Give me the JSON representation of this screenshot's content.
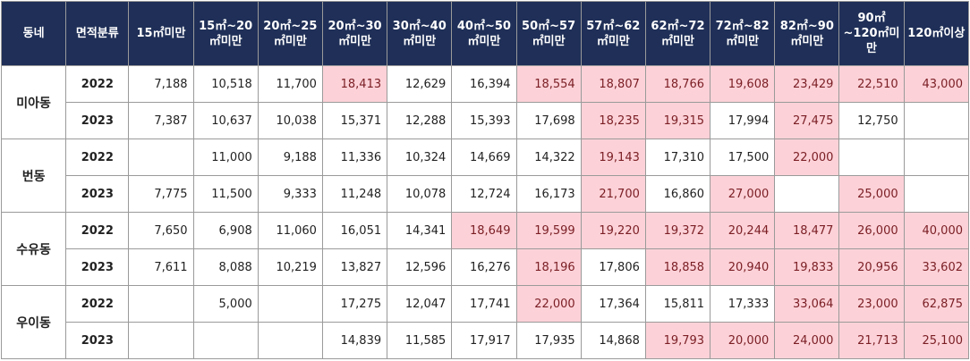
{
  "headers": [
    "동네",
    "면적분류",
    "15㎡미만",
    "15㎡~20㎡미만",
    "20㎡~25㎡미만",
    "20㎡~30㎡미만",
    "30㎡~40㎡미만",
    "40㎡~50㎡미만",
    "50㎡~57㎡미만",
    "57㎡~62㎡미만",
    "62㎡~72㎡미만",
    "72㎡~82㎡미만",
    "82㎡~90㎡미만",
    "90㎡~120㎡미만",
    "120㎡이상"
  ],
  "groups": [
    {
      "dong": "미아동",
      "rows": [
        {
          "year": "2022",
          "values": [
            "7,188",
            "10,518",
            "11,700",
            "18,413",
            "12,629",
            "16,394",
            "18,554",
            "18,807",
            "18,766",
            "19,608",
            "23,429",
            "22,510",
            "43,000"
          ]
        },
        {
          "year": "2023",
          "values": [
            "7,387",
            "10,637",
            "10,038",
            "15,371",
            "12,288",
            "15,393",
            "17,698",
            "18,235",
            "19,315",
            "17,994",
            "27,475",
            "12,750",
            ""
          ]
        }
      ]
    },
    {
      "dong": "번동",
      "rows": [
        {
          "year": "2022",
          "values": [
            "",
            "11,000",
            "9,188",
            "11,336",
            "10,324",
            "14,669",
            "14,322",
            "19,143",
            "17,310",
            "17,500",
            "22,000",
            "",
            ""
          ]
        },
        {
          "year": "2023",
          "values": [
            "7,775",
            "11,500",
            "9,333",
            "11,248",
            "10,078",
            "12,724",
            "16,173",
            "21,700",
            "16,860",
            "27,000",
            "",
            "25,000",
            ""
          ]
        }
      ]
    },
    {
      "dong": "수유동",
      "rows": [
        {
          "year": "2022",
          "values": [
            "7,650",
            "6,908",
            "11,060",
            "16,051",
            "14,341",
            "18,649",
            "19,599",
            "19,220",
            "19,372",
            "20,244",
            "18,477",
            "26,000",
            "40,000"
          ]
        },
        {
          "year": "2023",
          "values": [
            "7,611",
            "8,088",
            "10,219",
            "13,827",
            "12,596",
            "16,276",
            "18,196",
            "17,806",
            "18,858",
            "20,940",
            "19,833",
            "20,956",
            "33,602"
          ]
        }
      ]
    },
    {
      "dong": "우이동",
      "rows": [
        {
          "year": "2022",
          "values": [
            "",
            "5,000",
            "",
            "17,275",
            "12,047",
            "17,741",
            "22,000",
            "17,364",
            "15,811",
            "17,333",
            "33,064",
            "23,000",
            "62,875"
          ]
        },
        {
          "year": "2023",
          "values": [
            "",
            "",
            "",
            "14,839",
            "11,585",
            "17,917",
            "17,935",
            "14,868",
            "19,793",
            "20,000",
            "24,000",
            "21,713",
            "25,100"
          ]
        }
      ]
    }
  ],
  "highlight_color": "#fcd2d8",
  "highlight_text_color": "#7a1e24",
  "header_color": "#1f2f57",
  "highlight_threshold": 18000
}
